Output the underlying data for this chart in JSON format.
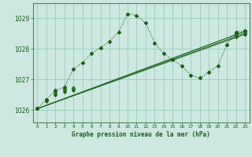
{
  "background_color": "#cce8e0",
  "grid_color": "#99ccbb",
  "line_color_dark": "#1a5c1a",
  "line_color_med": "#2d7a2d",
  "title": "Graphe pression niveau de la mer (hPa)",
  "xlim": [
    -0.5,
    23.5
  ],
  "ylim": [
    1025.6,
    1029.5
  ],
  "yticks": [
    1026,
    1027,
    1028,
    1029
  ],
  "xticks": [
    0,
    1,
    2,
    3,
    4,
    5,
    6,
    7,
    8,
    9,
    10,
    11,
    12,
    13,
    14,
    15,
    16,
    17,
    18,
    19,
    20,
    21,
    22,
    23
  ],
  "curve_x": [
    0,
    1,
    2,
    3,
    4,
    5,
    6,
    7,
    8,
    9,
    10,
    11,
    12,
    13,
    14,
    15,
    16,
    17,
    18,
    19,
    20,
    21,
    22,
    23
  ],
  "curve_y": [
    1026.05,
    1026.35,
    1026.65,
    1026.75,
    1027.35,
    1027.55,
    1027.85,
    1028.05,
    1028.25,
    1028.55,
    1029.15,
    1029.1,
    1028.85,
    1028.2,
    1027.85,
    1027.65,
    1027.45,
    1027.15,
    1027.05,
    1027.25,
    1027.45,
    1028.15,
    1028.55,
    1028.6
  ],
  "line1_x": [
    0,
    23
  ],
  "line1_y": [
    1026.05,
    1028.58
  ],
  "line2_x": [
    0,
    23
  ],
  "line2_y": [
    1026.05,
    1028.52
  ],
  "line3_x": [
    0,
    23
  ],
  "line3_y": [
    1026.05,
    1028.48
  ],
  "line1_markers_x": [
    0,
    1,
    2,
    3,
    4,
    22,
    23
  ],
  "line1_markers_y": [
    1026.05,
    1026.35,
    1026.6,
    1026.7,
    1026.72,
    1028.5,
    1028.58
  ],
  "line2_markers_x": [
    0,
    1,
    2,
    3,
    4,
    22,
    23
  ],
  "line2_markers_y": [
    1026.05,
    1026.35,
    1026.55,
    1026.65,
    1026.7,
    1028.45,
    1028.52
  ],
  "line3_markers_x": [
    0,
    1,
    2,
    3,
    4,
    22,
    23
  ],
  "line3_markers_y": [
    1026.05,
    1026.3,
    1026.5,
    1026.6,
    1026.65,
    1028.4,
    1028.48
  ]
}
